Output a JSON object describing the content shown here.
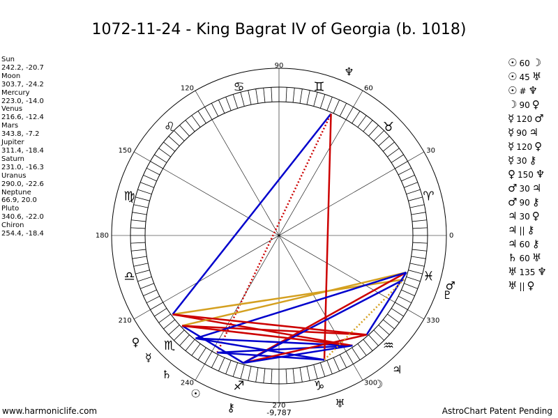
{
  "title": "1072-11-24 - King Bagrat IV of Georgia (b. 1018)",
  "planets": [
    {
      "name": "Sun",
      "coords": "242.2, -20.7",
      "lon": 242.2,
      "glyph": "☉"
    },
    {
      "name": "Moon",
      "coords": "303.7, -24.2",
      "lon": 303.7,
      "glyph": "☽"
    },
    {
      "name": "Mercury",
      "coords": "223.0, -14.0",
      "lon": 223.0,
      "glyph": "☿"
    },
    {
      "name": "Venus",
      "coords": "216.6, -12.4",
      "lon": 216.6,
      "glyph": "♀"
    },
    {
      "name": "Mars",
      "coords": "343.8, -7.2",
      "lon": 343.8,
      "glyph": "♂"
    },
    {
      "name": "Jupiter",
      "coords": "311.4, -18.4",
      "lon": 311.4,
      "glyph": "♃"
    },
    {
      "name": "Saturn",
      "coords": "231.0, -16.3",
      "lon": 231.0,
      "glyph": "♄"
    },
    {
      "name": "Uranus",
      "coords": "290.0, -22.6",
      "lon": 290.0,
      "glyph": "♅"
    },
    {
      "name": "Neptune",
      "coords": "66.9, 20.0",
      "lon": 66.9,
      "glyph": "♆"
    },
    {
      "name": "Pluto",
      "coords": "340.6, -22.0",
      "lon": 340.6,
      "glyph": "♇"
    },
    {
      "name": "Chiron",
      "coords": "254.4, -18.4",
      "lon": 254.4,
      "glyph": "⚷"
    }
  ],
  "aspects": [
    {
      "p1": "☉",
      "angle": "60",
      "p2": "☽"
    },
    {
      "p1": "☉",
      "angle": "45",
      "p2": "♅"
    },
    {
      "p1": "☉",
      "angle": "#",
      "p2": "♆"
    },
    {
      "p1": "☽",
      "angle": "90",
      "p2": "♀"
    },
    {
      "p1": "☿",
      "angle": "120",
      "p2": "♂"
    },
    {
      "p1": "☿",
      "angle": "90",
      "p2": "♃"
    },
    {
      "p1": "☿",
      "angle": "120",
      "p2": "♀"
    },
    {
      "p1": "☿",
      "angle": "30",
      "p2": "⚷"
    },
    {
      "p1": "♀",
      "angle": "150",
      "p2": "♆"
    },
    {
      "p1": "♂",
      "angle": "30",
      "p2": "♃"
    },
    {
      "p1": "♂",
      "angle": "90",
      "p2": "⚷"
    },
    {
      "p1": "♃",
      "angle": "30",
      "p2": "♀"
    },
    {
      "p1": "♃",
      "angle": "||",
      "p2": "⚷"
    },
    {
      "p1": "♃",
      "angle": "60",
      "p2": "⚷"
    },
    {
      "p1": "♄",
      "angle": "60",
      "p2": "♅"
    },
    {
      "p1": "♅",
      "angle": "135",
      "p2": "♆"
    },
    {
      "p1": "♅",
      "angle": "||",
      "p2": "♀"
    }
  ],
  "chart_data": {
    "type": "radial",
    "degree_labels": [
      "0",
      "30",
      "60",
      "90",
      "120",
      "150",
      "180",
      "210",
      "240",
      "270",
      "300",
      "330"
    ],
    "degree_label_values": [
      0,
      30,
      60,
      90,
      120,
      150,
      180,
      210,
      240,
      270,
      300,
      330
    ],
    "zodiac_glyphs": [
      "♈",
      "♉",
      "♊",
      "♋",
      "♌",
      "♍",
      "♎",
      "♏",
      "♐",
      "♑",
      "♒",
      "♓"
    ],
    "center_note": "-9,787",
    "aspect_lines": [
      {
        "from": "Sun",
        "to": "Neptune",
        "color": "#cc0000",
        "style": "dotted"
      },
      {
        "from": "Sun",
        "to": "Moon",
        "color": "#0000cc",
        "style": "solid"
      },
      {
        "from": "Moon",
        "to": "Venus",
        "color": "#cc0000",
        "style": "solid"
      },
      {
        "from": "Mercury",
        "to": "Mars",
        "color": "#d4a020",
        "style": "solid"
      },
      {
        "from": "Venus",
        "to": "Pluto",
        "color": "#d4a020",
        "style": "solid"
      },
      {
        "from": "Mercury",
        "to": "Jupiter",
        "color": "#cc0000",
        "style": "solid"
      },
      {
        "from": "Venus",
        "to": "Neptune",
        "color": "#0000cc",
        "style": "solid"
      },
      {
        "from": "Mercury",
        "to": "Chiron",
        "color": "#0000cc",
        "style": "solid"
      },
      {
        "from": "Mars",
        "to": "Chiron",
        "color": "#cc0000",
        "style": "solid"
      },
      {
        "from": "Mars",
        "to": "Jupiter",
        "color": "#0000cc",
        "style": "solid"
      },
      {
        "from": "Saturn",
        "to": "Uranus",
        "color": "#0000cc",
        "style": "solid"
      },
      {
        "from": "Uranus",
        "to": "Neptune",
        "color": "#cc0000",
        "style": "solid"
      },
      {
        "from": "Saturn",
        "to": "Moon",
        "color": "#0000cc",
        "style": "solid"
      },
      {
        "from": "Sun",
        "to": "Uranus",
        "color": "#0000cc",
        "style": "solid"
      },
      {
        "from": "Chiron",
        "to": "Jupiter",
        "color": "#cc0000",
        "style": "solid"
      },
      {
        "from": "Pluto",
        "to": "Chiron",
        "color": "#0000cc",
        "style": "solid"
      },
      {
        "from": "Mars",
        "to": "Saturn",
        "color": "#0000cc",
        "style": "solid"
      },
      {
        "from": "Venus",
        "to": "Jupiter",
        "color": "#cc0000",
        "style": "solid"
      },
      {
        "from": "Mercury",
        "to": "Moon",
        "color": "#cc0000",
        "style": "solid"
      },
      {
        "from": "Chiron",
        "to": "Moon",
        "color": "#0000cc",
        "style": "solid"
      },
      {
        "from": "Pluto",
        "to": "Uranus",
        "color": "#d4a020",
        "style": "dotted"
      }
    ]
  },
  "footer": {
    "left": "www.harmoniclife.com",
    "right": "AstroChart Patent Pending"
  }
}
